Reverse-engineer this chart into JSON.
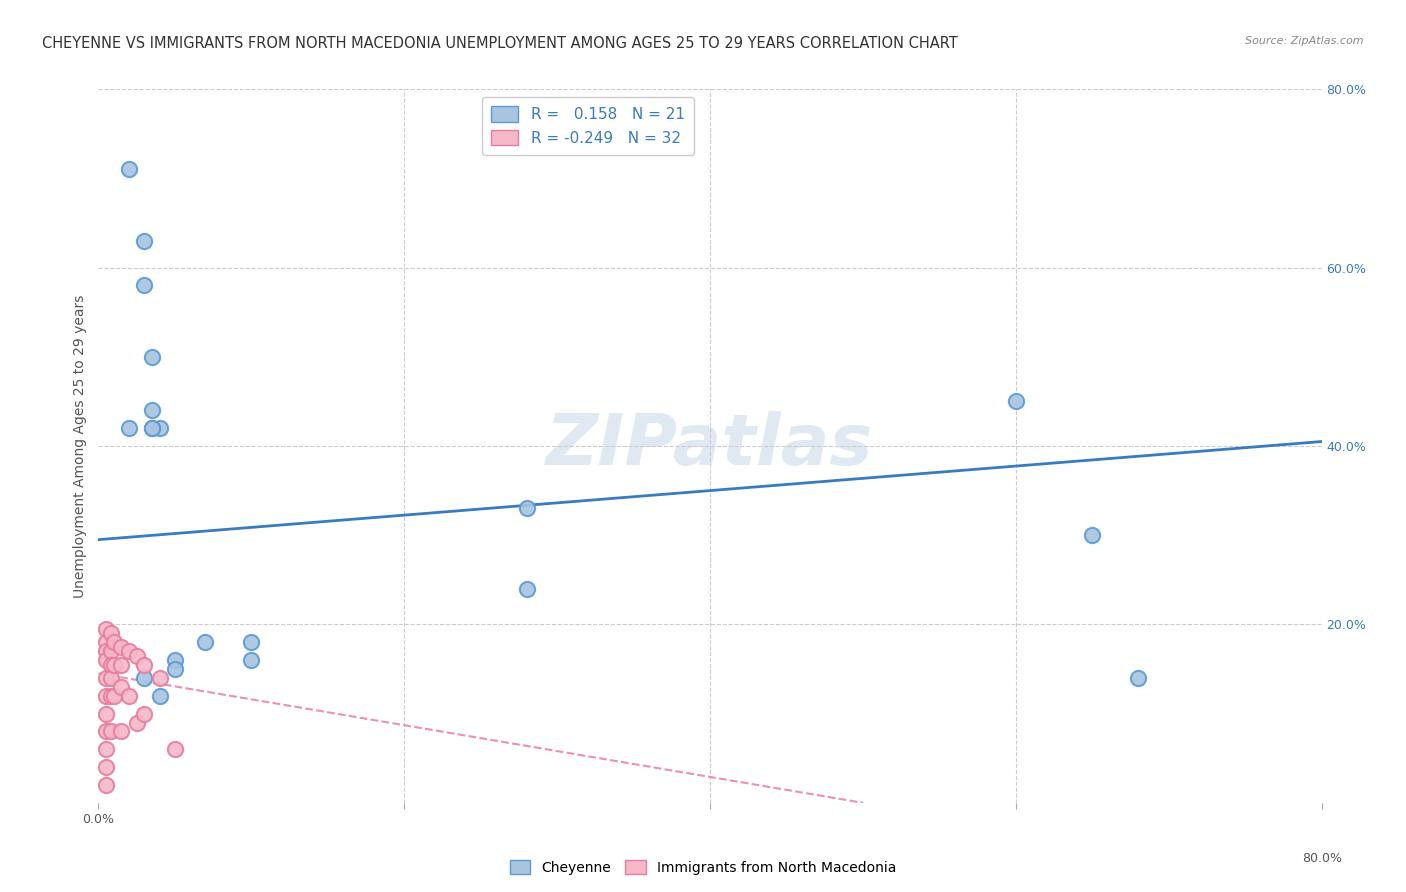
{
  "title": "CHEYENNE VS IMMIGRANTS FROM NORTH MACEDONIA UNEMPLOYMENT AMONG AGES 25 TO 29 YEARS CORRELATION CHART",
  "source": "Source: ZipAtlas.com",
  "ylabel": "Unemployment Among Ages 25 to 29 years",
  "xlim": [
    0,
    0.8
  ],
  "ylim": [
    0,
    0.8
  ],
  "xtick_vals": [
    0.0,
    0.2,
    0.4,
    0.6,
    0.8
  ],
  "xtick_labels": [
    "0.0%",
    "",
    "",
    "",
    "80.0%"
  ],
  "ytick_vals": [],
  "right_ytick_vals": [
    0.2,
    0.4,
    0.6,
    0.8
  ],
  "right_ytick_labels": [
    "20.0%",
    "40.0%",
    "60.0%",
    "80.0%"
  ],
  "background_color": "#ffffff",
  "grid_color": "#cccccc",
  "watermark": "ZIPatlas",
  "cheyenne_color": "#a8c4e0",
  "cheyenne_edge_color": "#5b9bd5",
  "macedonia_color": "#f4b8c8",
  "macedonia_edge_color": "#e87da0",
  "cheyenne_R": 0.158,
  "cheyenne_N": 21,
  "macedonia_R": -0.249,
  "macedonia_N": 32,
  "cheyenne_line_color": "#3a7abf",
  "macedonia_line_color": "#e87da0",
  "cheyenne_x": [
    0.02,
    0.03,
    0.03,
    0.035,
    0.035,
    0.04,
    0.02,
    0.035,
    0.035,
    0.28,
    0.28,
    0.6,
    0.65,
    0.68,
    0.1,
    0.1,
    0.05,
    0.05,
    0.03,
    0.04,
    0.07
  ],
  "cheyenne_y": [
    0.71,
    0.63,
    0.58,
    0.5,
    0.44,
    0.42,
    0.42,
    0.42,
    0.42,
    0.33,
    0.24,
    0.45,
    0.3,
    0.14,
    0.18,
    0.16,
    0.16,
    0.15,
    0.14,
    0.12,
    0.18
  ],
  "macedonia_x": [
    0.005,
    0.005,
    0.005,
    0.005,
    0.005,
    0.005,
    0.005,
    0.005,
    0.005,
    0.005,
    0.005,
    0.008,
    0.008,
    0.008,
    0.008,
    0.008,
    0.008,
    0.01,
    0.01,
    0.01,
    0.015,
    0.015,
    0.015,
    0.015,
    0.02,
    0.02,
    0.025,
    0.025,
    0.03,
    0.03,
    0.04,
    0.05
  ],
  "macedonia_y": [
    0.195,
    0.18,
    0.17,
    0.16,
    0.14,
    0.12,
    0.1,
    0.08,
    0.06,
    0.04,
    0.02,
    0.19,
    0.17,
    0.155,
    0.14,
    0.12,
    0.08,
    0.18,
    0.155,
    0.12,
    0.175,
    0.155,
    0.13,
    0.08,
    0.17,
    0.12,
    0.165,
    0.09,
    0.155,
    0.1,
    0.14,
    0.06
  ],
  "chey_line_x": [
    0.0,
    0.8
  ],
  "chey_line_y": [
    0.295,
    0.405
  ],
  "mac_line_x": [
    0.0,
    0.5
  ],
  "mac_line_y": [
    0.145,
    0.0
  ],
  "marker_size": 120,
  "title_fontsize": 10.5,
  "axis_fontsize": 10,
  "tick_fontsize": 9,
  "legend_fontsize": 11,
  "legend_label1": "R =   0.158   N = 21",
  "legend_label2": "R = -0.249   N = 32",
  "bottom_legend_label1": "Cheyenne",
  "bottom_legend_label2": "Immigrants from North Macedonia"
}
